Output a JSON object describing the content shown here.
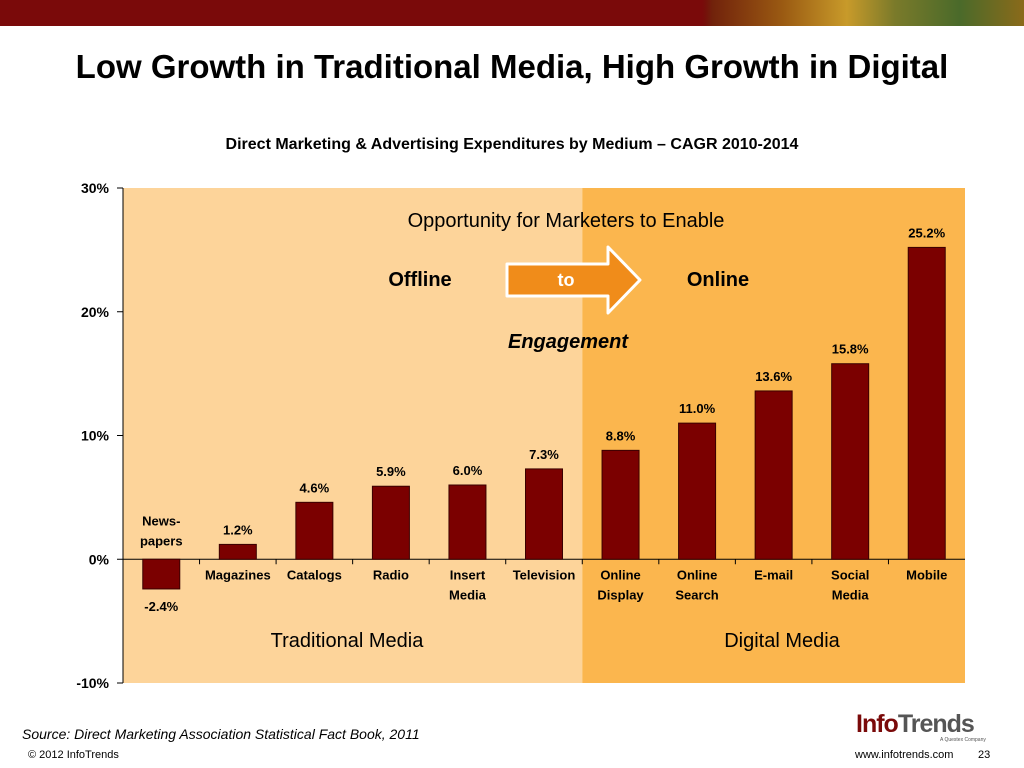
{
  "slide": {
    "title": "Low Growth in Traditional Media, High Growth in Digital",
    "source": "Source: Direct Marketing Association Statistical Fact Book, 2011",
    "copyright": "© 2012 InfoTrends",
    "website": "www.infotrends.com",
    "page_number": "23",
    "logo": {
      "brand_left": "Info",
      "brand_right": "Trends",
      "tagline": "A Questex Company"
    }
  },
  "colors": {
    "bar": "#7b0000",
    "traditional_bg": "#fdd49a",
    "digital_bg": "#fbb64e",
    "arrow_fill": "#f08c1a",
    "top_bar": "#7a0a0a"
  },
  "annotations": {
    "opportunity": "Opportunity for Marketers to Enable",
    "offline": "Offline",
    "arrow_label": "to",
    "online": "Online",
    "engagement": "Engagement",
    "traditional_media": "Traditional Media",
    "digital_media": "Digital Media"
  },
  "chart_data": {
    "type": "bar",
    "title": "Direct Marketing & Advertising Expenditures by Medium – CAGR 2010-2014",
    "categories": [
      [
        "News-",
        "papers"
      ],
      [
        "Magazines"
      ],
      [
        "Catalogs"
      ],
      [
        "Radio"
      ],
      [
        "Insert",
        "Media"
      ],
      [
        "Television"
      ],
      [
        "Online",
        "Display"
      ],
      [
        "Online",
        "Search"
      ],
      [
        "E-mail"
      ],
      [
        "Social",
        "Media"
      ],
      [
        "Mobile"
      ]
    ],
    "values": [
      -2.4,
      1.2,
      4.6,
      5.9,
      6.0,
      7.3,
      8.8,
      11.0,
      13.6,
      15.8,
      25.2
    ],
    "value_labels": [
      "-2.4%",
      "1.2%",
      "4.6%",
      "5.9%",
      "6.0%",
      "7.3%",
      "8.8%",
      "11.0%",
      "13.6%",
      "15.8%",
      "25.2%"
    ],
    "groups": [
      {
        "name": "Traditional Media",
        "categories": [
          0,
          1,
          2,
          3,
          4,
          5
        ]
      },
      {
        "name": "Digital Media",
        "categories": [
          6,
          7,
          8,
          9,
          10
        ]
      }
    ],
    "ylim": [
      -10,
      30
    ],
    "yticks": [
      30,
      20,
      10,
      0,
      -10
    ],
    "ytick_labels": [
      "30%",
      "20%",
      "10%",
      "0%",
      "-10%"
    ],
    "xlabel": "",
    "ylabel": "",
    "grid": false,
    "legend": "none"
  }
}
